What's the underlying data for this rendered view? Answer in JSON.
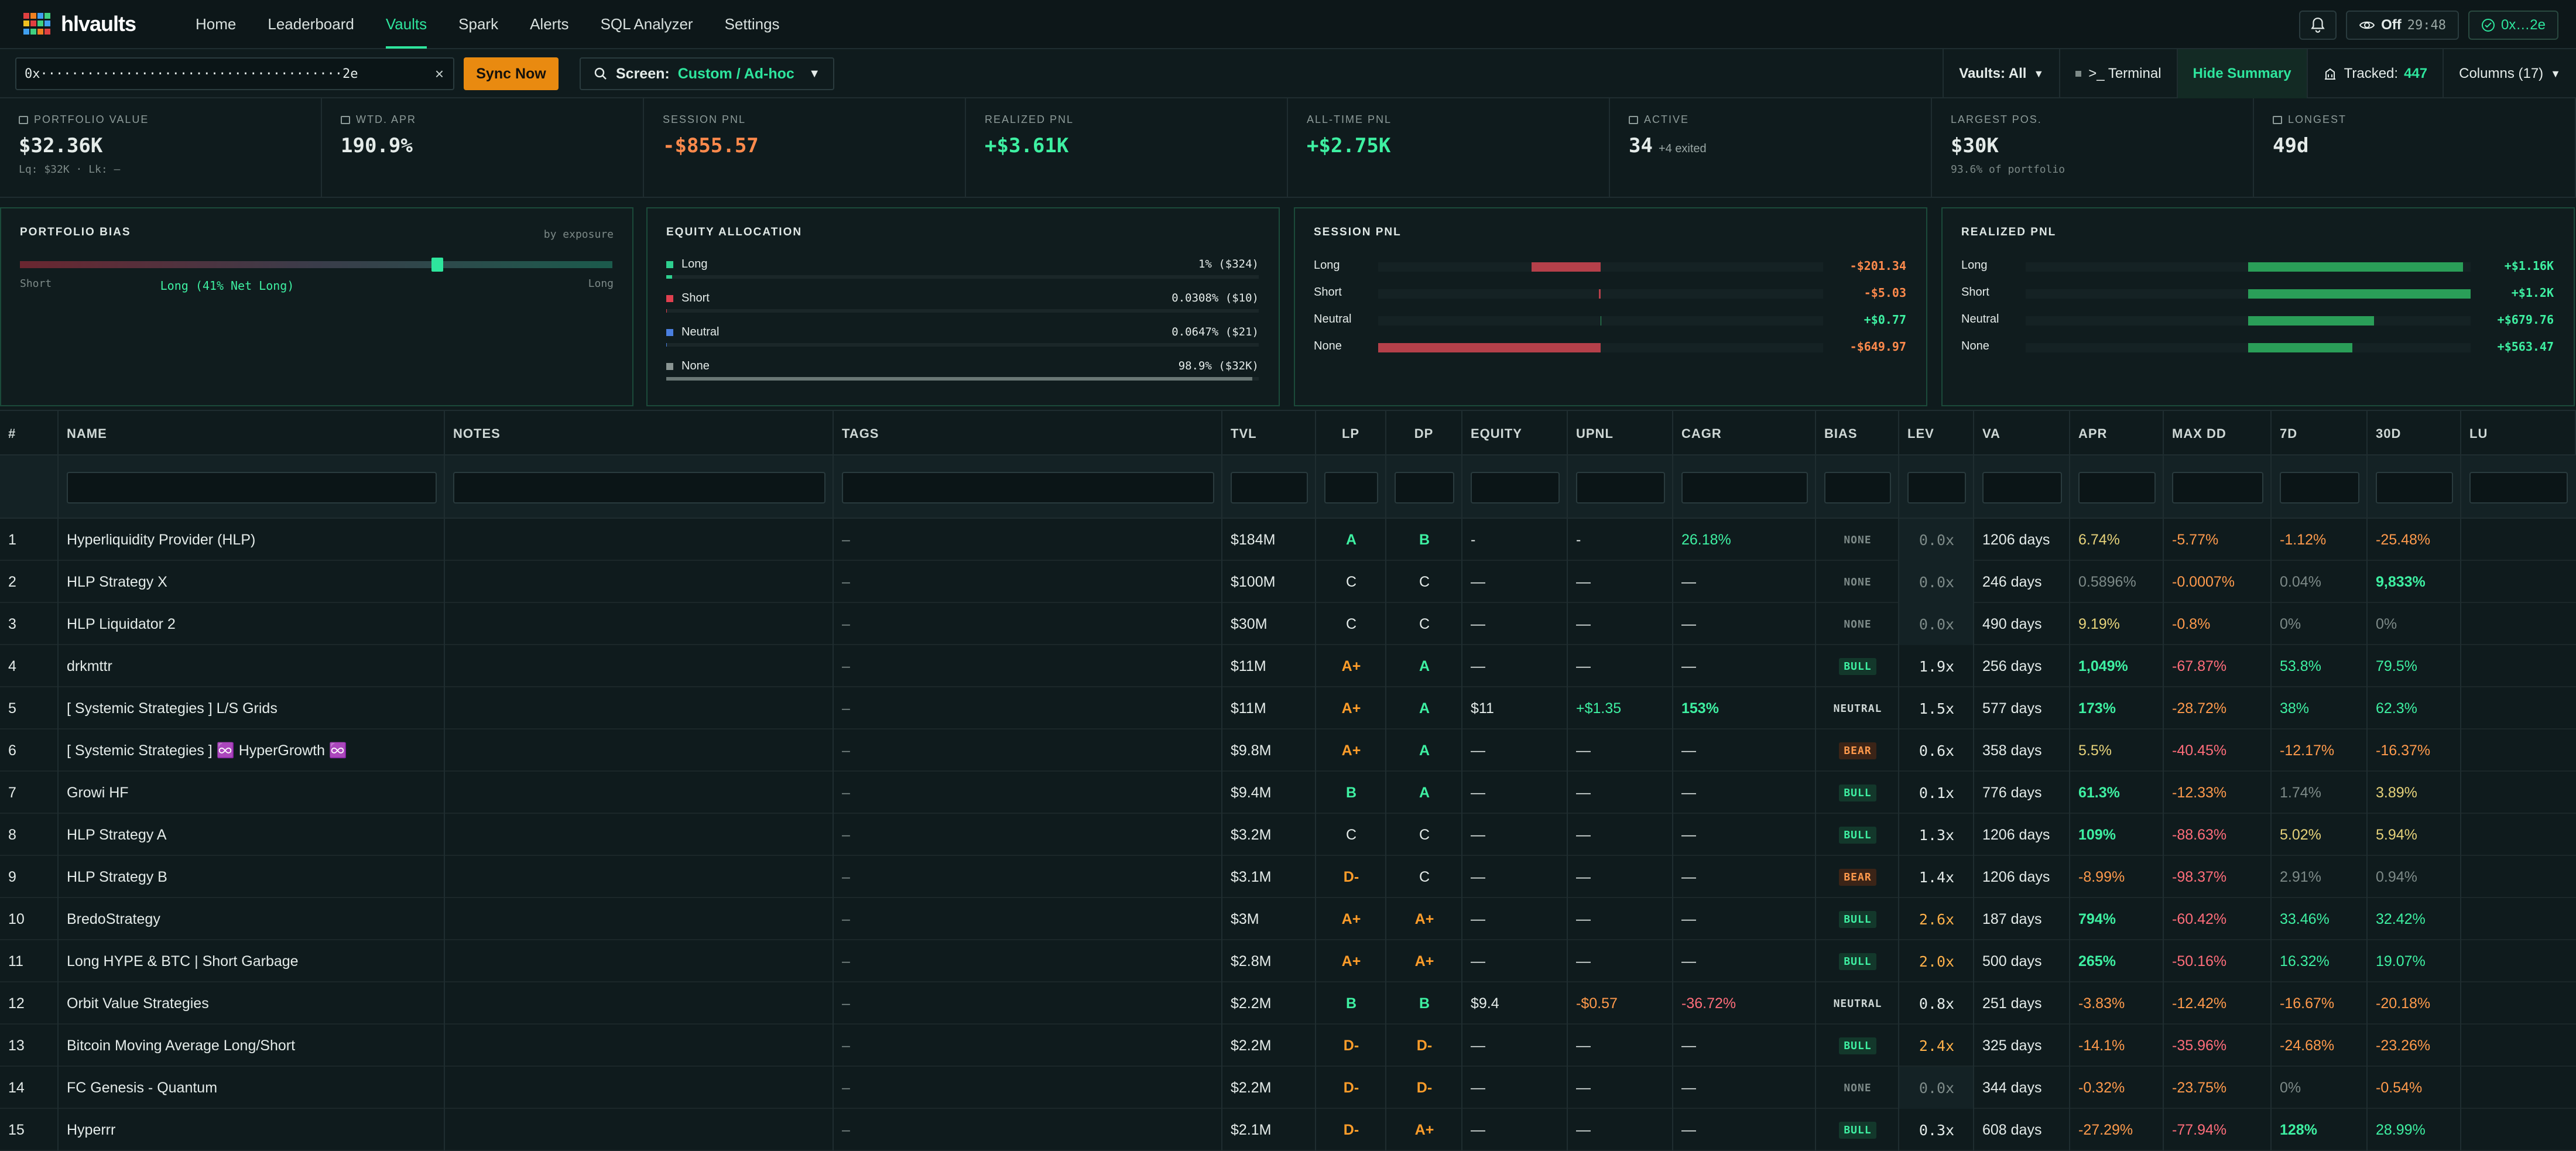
{
  "nav": {
    "brand": "hlvaults",
    "items": [
      "Home",
      "Leaderboard",
      "Vaults",
      "Spark",
      "Alerts",
      "SQL Analyzer",
      "Settings"
    ],
    "active": "Vaults",
    "privacy_label": "Off",
    "privacy_time": "29:48",
    "wallet": "0x…2e"
  },
  "toolbar": {
    "address_value": "0x·······································2e",
    "sync_label": "Sync Now",
    "screen_label": "Screen:",
    "screen_value": "Custom / Ad-hoc",
    "vaults_filter": "Vaults: All",
    "terminal_label": ">_ Terminal",
    "hide_summary_label": "Hide Summary",
    "tracked_label": "Tracked:",
    "tracked_count": "447",
    "columns_label": "Columns (17)"
  },
  "stats": [
    {
      "label": "PORTFOLIO VALUE",
      "value": "$32.36K",
      "sub": "Lq: $32K · Lk: –",
      "tone": "white"
    },
    {
      "label": "WTD. APR",
      "value": "190.9%",
      "sub": "",
      "tone": "white"
    },
    {
      "label": "SESSION PNL",
      "value": "-$855.57",
      "sub": "",
      "tone": "red"
    },
    {
      "label": "REALIZED PNL",
      "value": "+$3.61K",
      "sub": "",
      "tone": "green"
    },
    {
      "label": "ALL-TIME PNL",
      "value": "+$2.75K",
      "sub": "",
      "tone": "green"
    },
    {
      "label": "ACTIVE",
      "value": "34",
      "extra": "+4 exited",
      "sub": "",
      "tone": "white"
    },
    {
      "label": "LARGEST POS.",
      "value": "$30K",
      "sub": "93.6% of portfolio",
      "tone": "white"
    },
    {
      "label": "LONGEST",
      "value": "49d",
      "sub": "",
      "tone": "white"
    }
  ],
  "bias": {
    "title": "PORTFOLIO BIAS",
    "hint": "by exposure",
    "left": "Short",
    "right": "Long",
    "center": "Long (41% Net Long)",
    "position": 0.705
  },
  "allocation": {
    "title": "EQUITY ALLOCATION",
    "rows": [
      {
        "name": "Long",
        "value": "1% ($324)",
        "color": "#2ecf8f",
        "fraction": 0.01
      },
      {
        "name": "Short",
        "value": "0.0308% ($10)",
        "color": "#e0404f",
        "fraction": 0.0003
      },
      {
        "name": "Neutral",
        "value": "0.0647% ($21)",
        "color": "#4a7fe0",
        "fraction": 0.0006
      },
      {
        "name": "None",
        "value": "98.9% ($32K)",
        "color": "#8a9593",
        "fraction": 0.989
      }
    ]
  },
  "session_pnl": {
    "title": "SESSION PNL",
    "rows": [
      {
        "name": "Long",
        "value": "-$201.34",
        "amount": -201.34
      },
      {
        "name": "Short",
        "value": "-$5.03",
        "amount": -5.03
      },
      {
        "name": "Neutral",
        "value": "+$0.77",
        "amount": 0.77
      },
      {
        "name": "None",
        "value": "-$649.97",
        "amount": -649.97
      }
    ]
  },
  "realized_pnl": {
    "title": "REALIZED PNL",
    "rows": [
      {
        "name": "Long",
        "value": "+$1.16K",
        "amount": 1160
      },
      {
        "name": "Short",
        "value": "+$1.2K",
        "amount": 1200
      },
      {
        "name": "Neutral",
        "value": "+$679.76",
        "amount": 679.76
      },
      {
        "name": "None",
        "value": "+$563.47",
        "amount": 563.47
      }
    ]
  },
  "table": {
    "columns": [
      "#",
      "NAME",
      "NOTES",
      "TAGS",
      "TVL",
      "LP",
      "DP",
      "EQUITY",
      "UPNL",
      "CAGR",
      "BIAS",
      "LEV",
      "VA",
      "APR",
      "MAX DD",
      "7D",
      "30D",
      "LU"
    ],
    "rows": [
      {
        "n": "1",
        "name": "Hyperliquidity Provider (HLP)",
        "tags": "–",
        "tvl": "$184M",
        "lp": "A",
        "dp": "B",
        "equity": "-",
        "upnl": "-",
        "cagr": "26.18%",
        "bias": "NONE",
        "lev": "0.0x",
        "va": "1206 days",
        "apr": "6.74%",
        "dd": "-5.77%",
        "d7": "-1.12%",
        "d30": "-25.48%"
      },
      {
        "n": "2",
        "name": "HLP Strategy X",
        "tags": "–",
        "tvl": "$100M",
        "lp": "C",
        "dp": "C",
        "equity": "—",
        "upnl": "—",
        "cagr": "—",
        "bias": "NONE",
        "lev": "0.0x",
        "va": "246 days",
        "apr": "0.5896%",
        "dd": "-0.0007%",
        "d7": "0.04%",
        "d30": "9,833%"
      },
      {
        "n": "3",
        "name": "HLP Liquidator 2",
        "tags": "–",
        "tvl": "$30M",
        "lp": "C",
        "dp": "C",
        "equity": "—",
        "upnl": "—",
        "cagr": "—",
        "bias": "NONE",
        "lev": "0.0x",
        "va": "490 days",
        "apr": "9.19%",
        "dd": "-0.8%",
        "d7": "0%",
        "d30": "0%"
      },
      {
        "n": "4",
        "name": "drkmttr",
        "tags": "–",
        "tvl": "$11M",
        "lp": "A+",
        "dp": "A",
        "equity": "—",
        "upnl": "—",
        "cagr": "—",
        "bias": "BULL",
        "lev": "1.9x",
        "va": "256 days",
        "apr": "1,049%",
        "dd": "-67.87%",
        "d7": "53.8%",
        "d30": "79.5%"
      },
      {
        "n": "5",
        "name": "[ Systemic Strategies ] L/S Grids",
        "tags": "–",
        "tvl": "$11M",
        "lp": "A+",
        "dp": "A",
        "equity": "$11",
        "upnl": "+$1.35",
        "cagr": "153%",
        "bias": "NEUTRAL",
        "lev": "1.5x",
        "va": "577 days",
        "apr": "173%",
        "dd": "-28.72%",
        "d7": "38%",
        "d30": "62.3%"
      },
      {
        "n": "6",
        "name": "[ Systemic Strategies ] ♾️ HyperGrowth ♾️",
        "tags": "–",
        "tvl": "$9.8M",
        "lp": "A+",
        "dp": "A",
        "equity": "—",
        "upnl": "—",
        "cagr": "—",
        "bias": "BEAR",
        "lev": "0.6x",
        "va": "358 days",
        "apr": "5.5%",
        "dd": "-40.45%",
        "d7": "-12.17%",
        "d30": "-16.37%"
      },
      {
        "n": "7",
        "name": "Growi HF",
        "tags": "–",
        "tvl": "$9.4M",
        "lp": "B",
        "dp": "A",
        "equity": "—",
        "upnl": "—",
        "cagr": "—",
        "bias": "BULL",
        "lev": "0.1x",
        "va": "776 days",
        "apr": "61.3%",
        "dd": "-12.33%",
        "d7": "1.74%",
        "d30": "3.89%"
      },
      {
        "n": "8",
        "name": "HLP Strategy A",
        "tags": "–",
        "tvl": "$3.2M",
        "lp": "C",
        "dp": "C",
        "equity": "—",
        "upnl": "—",
        "cagr": "—",
        "bias": "BULL",
        "lev": "1.3x",
        "va": "1206 days",
        "apr": "109%",
        "dd": "-88.63%",
        "d7": "5.02%",
        "d30": "5.94%"
      },
      {
        "n": "9",
        "name": "HLP Strategy B",
        "tags": "–",
        "tvl": "$3.1M",
        "lp": "D-",
        "dp": "C",
        "equity": "—",
        "upnl": "—",
        "cagr": "—",
        "bias": "BEAR",
        "lev": "1.4x",
        "va": "1206 days",
        "apr": "-8.99%",
        "dd": "-98.37%",
        "d7": "2.91%",
        "d30": "0.94%"
      },
      {
        "n": "10",
        "name": "BredoStrategy",
        "tags": "–",
        "tvl": "$3M",
        "lp": "A+",
        "dp": "A+",
        "equity": "—",
        "upnl": "—",
        "cagr": "—",
        "bias": "BULL",
        "lev": "2.6x",
        "va": "187 days",
        "apr": "794%",
        "dd": "-60.42%",
        "d7": "33.46%",
        "d30": "32.42%"
      },
      {
        "n": "11",
        "name": "Long HYPE & BTC | Short Garbage",
        "tags": "–",
        "tvl": "$2.8M",
        "lp": "A+",
        "dp": "A+",
        "equity": "—",
        "upnl": "—",
        "cagr": "—",
        "bias": "BULL",
        "lev": "2.0x",
        "va": "500 days",
        "apr": "265%",
        "dd": "-50.16%",
        "d7": "16.32%",
        "d30": "19.07%"
      },
      {
        "n": "12",
        "name": "Orbit Value Strategies",
        "tags": "–",
        "tvl": "$2.2M",
        "lp": "B",
        "dp": "B",
        "equity": "$9.4",
        "upnl": "-$0.57",
        "cagr": "-36.72%",
        "bias": "NEUTRAL",
        "lev": "0.8x",
        "va": "251 days",
        "apr": "-3.83%",
        "dd": "-12.42%",
        "d7": "-16.67%",
        "d30": "-20.18%"
      },
      {
        "n": "13",
        "name": "Bitcoin Moving Average Long/Short",
        "tags": "–",
        "tvl": "$2.2M",
        "lp": "D-",
        "dp": "D-",
        "equity": "—",
        "upnl": "—",
        "cagr": "—",
        "bias": "BULL",
        "lev": "2.4x",
        "va": "325 days",
        "apr": "-14.1%",
        "dd": "-35.96%",
        "d7": "-24.68%",
        "d30": "-23.26%"
      },
      {
        "n": "14",
        "name": "FC Genesis - Quantum",
        "tags": "–",
        "tvl": "$2.2M",
        "lp": "D-",
        "dp": "D-",
        "equity": "—",
        "upnl": "—",
        "cagr": "—",
        "bias": "NONE",
        "lev": "0.0x",
        "va": "344 days",
        "apr": "-0.32%",
        "dd": "-23.75%",
        "d7": "0%",
        "d30": "-0.54%"
      },
      {
        "n": "15",
        "name": "Hyperrr",
        "tags": "–",
        "tvl": "$2.1M",
        "lp": "D-",
        "dp": "A+",
        "equity": "—",
        "upnl": "—",
        "cagr": "—",
        "bias": "BULL",
        "lev": "0.3x",
        "va": "608 days",
        "apr": "-27.29%",
        "dd": "-77.94%",
        "d7": "128%",
        "d30": "28.99%"
      }
    ]
  }
}
